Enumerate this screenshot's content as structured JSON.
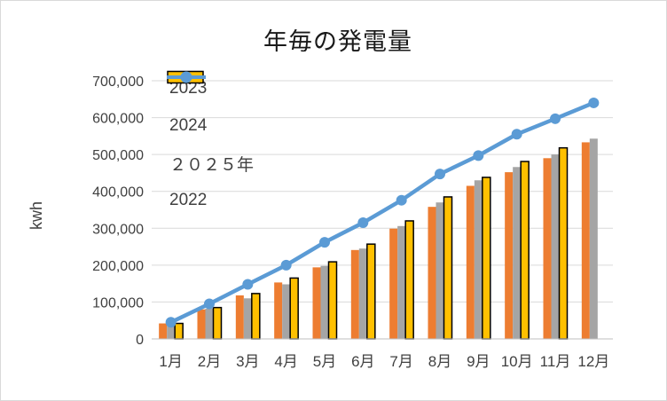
{
  "window": {
    "background": "#ffffff",
    "border_color": "#d9d9d9"
  },
  "chart_data": {
    "type": "combo",
    "title": "年毎の発電量",
    "ylabel": "kwh",
    "categories": [
      "1月",
      "2月",
      "3月",
      "4月",
      "5月",
      "6月",
      "7月",
      "8月",
      "9月",
      "10月",
      "11月",
      "12月"
    ],
    "ylim": [
      0,
      700000
    ],
    "ytick_step": 100000,
    "ytick_labels": [
      "0",
      "100,000",
      "200,000",
      "300,000",
      "400,000",
      "500,000",
      "600,000",
      "700,000"
    ],
    "grid": true,
    "legend_position": "top-left-inside",
    "series": [
      {
        "name": "2023",
        "type": "bar",
        "color": "#ED7D31",
        "values": [
          42000,
          80000,
          118000,
          153000,
          194000,
          241000,
          299000,
          358000,
          415000,
          452000,
          490000,
          533000
        ]
      },
      {
        "name": "2024",
        "type": "bar",
        "color": "#A5A5A5",
        "values": [
          43000,
          82000,
          110000,
          148000,
          198000,
          245000,
          306000,
          370000,
          430000,
          466000,
          500000,
          543000
        ]
      },
      {
        "name": "２０２５年",
        "type": "bar",
        "color": "#FFC000",
        "border_color": "#000000",
        "values": [
          42000,
          85000,
          123000,
          165000,
          209000,
          257000,
          320000,
          385000,
          438000,
          481000,
          518000,
          null
        ]
      },
      {
        "name": "2022",
        "type": "line",
        "color": "#5B9BD5",
        "marker": "circle",
        "values": [
          45000,
          95000,
          148000,
          200000,
          262000,
          315000,
          376000,
          447000,
          497000,
          555000,
          597000,
          640000
        ]
      }
    ],
    "colors": {
      "grid": "#D9D9D9",
      "axis_line": "#BFBFBF",
      "tick_text": "#404040",
      "title_text": "#1a1a1a"
    }
  }
}
